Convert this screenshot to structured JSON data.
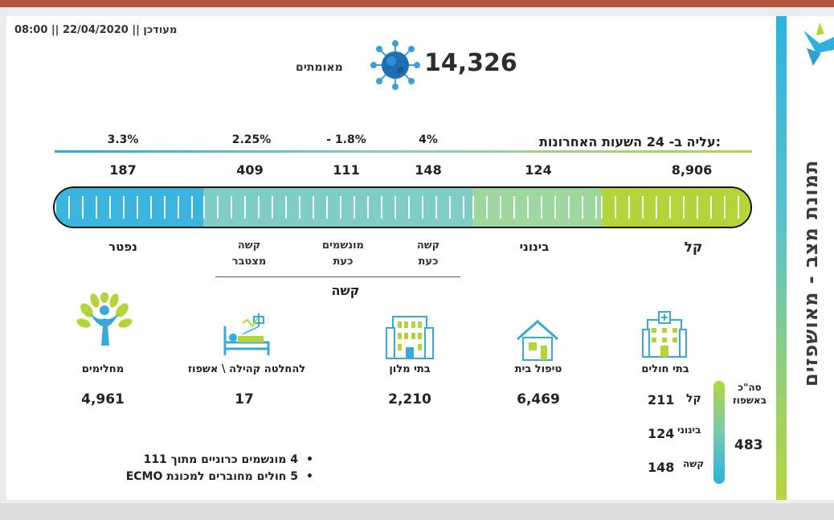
{
  "header": {
    "updated": "מעודכן || 22/04/2020 || 08:00",
    "total_confirmed": "14,326",
    "total_label": "מאומתים"
  },
  "side_title": "תמונת מצב - מאושפזים",
  "rise": {
    "label": "עליה ב- 24 השעות האחרונות:",
    "pct_serious_now": "4%",
    "pct_ventilated": "- 1.8%",
    "pct_serious_cum": "2.25%",
    "pct_deceased": "3.3%"
  },
  "counts": {
    "mild": "8,906",
    "moderate": "124",
    "serious_now": "148",
    "ventilated": "111",
    "serious_cum": "409",
    "deceased": "187"
  },
  "categories": {
    "mild": "קל",
    "moderate": "בינוני",
    "serious_now_1": "קשה",
    "serious_now_2": "כעת",
    "ventilated_1": "מונשמים",
    "ventilated_2": "כעת",
    "serious_cum_1": "קשה",
    "serious_cum_2": "מצטבר",
    "deceased": "נפטר",
    "serious_group": "קשה"
  },
  "locations": {
    "hospitals": "בתי חולים",
    "home_care": "טיפול בית",
    "home_care_val": "6,469",
    "hotels": "בתי מלון",
    "hotels_val": "2,210",
    "community": "להחלטה קהילה \\ אשפוז",
    "community_val": "17",
    "recovered": "מחלימים",
    "recovered_val": "4,961"
  },
  "hospital_breakdown": {
    "mild_label": "קל",
    "mild_val": "211",
    "moderate_label": "בינוני",
    "moderate_val": "124",
    "serious_label": "קשה",
    "serious_val": "148",
    "total_label_1": "סה\"כ",
    "total_label_2": "באשפוז",
    "total_val": "483"
  },
  "notes": [
    "4 מונשמים כרוניים מתוך 111",
    "5 חולים מחוברים למכונת ECMO"
  ],
  "colors": {
    "mild": "#b4d43c",
    "moderate": "#9fd7a0",
    "serious": "#7fcdc4",
    "deceased": "#3bb5de",
    "top_accent": "#b5553c"
  }
}
